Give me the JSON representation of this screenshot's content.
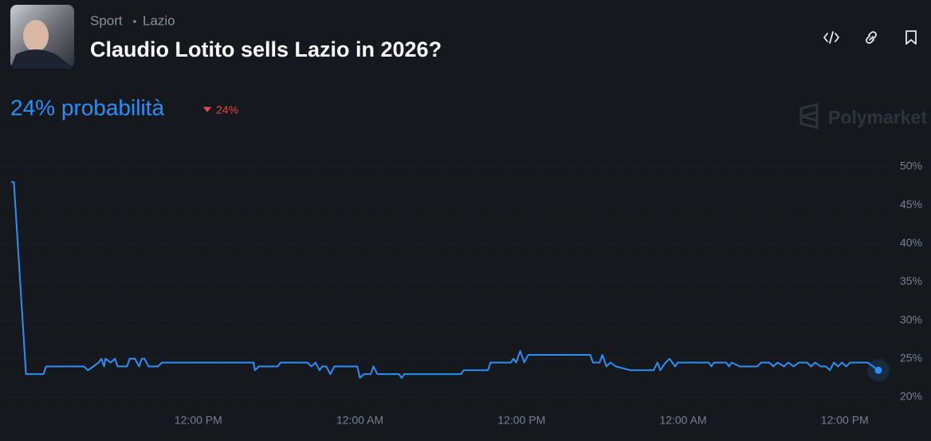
{
  "header": {
    "breadcrumb": [
      "Sport",
      "Lazio"
    ],
    "title": "Claudio Lotito sells Lazio in 2026?",
    "probability": "24% probabilità",
    "change": "24%",
    "brand": "Polymarket"
  },
  "chart_data": {
    "type": "line",
    "x": [
      -1.9,
      -1.7,
      -0.8,
      0.5,
      0.7,
      3.5,
      3.8,
      4.2,
      4.6,
      4.8,
      5.0,
      5.1,
      5.5,
      5.8,
      6.0,
      6.7,
      6.9,
      7.3,
      7.6,
      7.8,
      8.0,
      8.3,
      9.0,
      9.3,
      16.1,
      16.2,
      16.5,
      17.9,
      18.1,
      20.1,
      20.4,
      20.7,
      21.0,
      21.2,
      21.5,
      21.8,
      22.1,
      23.8,
      24.0,
      24.3,
      24.8,
      25.0,
      25.3,
      26.9,
      27.1,
      27.3,
      31.5,
      31.7,
      33.5,
      33.7,
      35.2,
      35.4,
      35.6,
      35.9,
      36.2,
      36.5,
      41.1,
      41.3,
      41.8,
      42.0,
      42.3,
      42.6,
      43.0,
      44.1,
      45.8,
      46.1,
      46.3,
      46.7,
      47.0,
      47.4,
      47.6,
      49.9,
      50.1,
      50.3,
      51.2,
      51.4,
      51.6,
      52.2,
      53.5,
      53.8,
      54.4,
      54.7,
      55.0,
      55.5,
      55.8,
      56.2,
      56.6,
      57.2,
      57.5,
      57.8,
      58.2,
      58.6,
      58.9,
      59.2,
      59.5,
      59.8,
      60.1,
      60.4,
      61.7,
      62.5
    ],
    "series": [
      {
        "color": "#2a8ff7",
        "values": [
          48,
          48,
          23,
          23,
          24,
          24,
          23.5,
          24,
          24.5,
          25,
          24,
          25,
          24.5,
          25,
          24,
          24,
          25,
          25,
          24,
          25,
          25,
          24,
          24,
          24.5,
          24.5,
          23.5,
          24,
          24,
          24.5,
          24.5,
          24,
          24.5,
          23.5,
          24,
          24,
          23,
          24,
          24,
          22.5,
          23,
          23,
          24,
          23,
          23,
          22.5,
          23,
          23,
          23.5,
          23.5,
          24.5,
          24.5,
          25,
          24.5,
          26,
          24.5,
          25.5,
          25.5,
          24.5,
          24.5,
          25.5,
          24,
          24.5,
          24,
          23.5,
          23.5,
          24.5,
          23.5,
          24.5,
          25,
          24,
          24.5,
          24.5,
          24,
          24.5,
          24.5,
          24,
          24.5,
          24,
          24,
          24.5,
          24.5,
          24,
          24.5,
          24,
          24.5,
          24,
          24.5,
          24.5,
          24,
          24.5,
          24,
          24,
          23.5,
          24.5,
          24,
          24.5,
          24,
          24.5,
          24.5,
          23.5
        ]
      }
    ],
    "xlim": [
      -1.9,
      62.5
    ],
    "xticks": [
      {
        "value": 12,
        "label": "12:00 PM"
      },
      {
        "value": 24,
        "label": "12:00 AM"
      },
      {
        "value": 36,
        "label": "12:00 PM"
      },
      {
        "value": 48,
        "label": "12:00 AM"
      },
      {
        "value": 60,
        "label": "12:00 PM"
      }
    ],
    "ylim": [
      20,
      50
    ],
    "yticks": [
      {
        "value": 20,
        "label": "20%"
      },
      {
        "value": 25,
        "label": "25%"
      },
      {
        "value": 30,
        "label": "30%"
      },
      {
        "value": 35,
        "label": "35%"
      },
      {
        "value": 40,
        "label": "40%"
      },
      {
        "value": 45,
        "label": "45%"
      },
      {
        "value": 50,
        "label": "50%"
      }
    ],
    "grid": true
  }
}
